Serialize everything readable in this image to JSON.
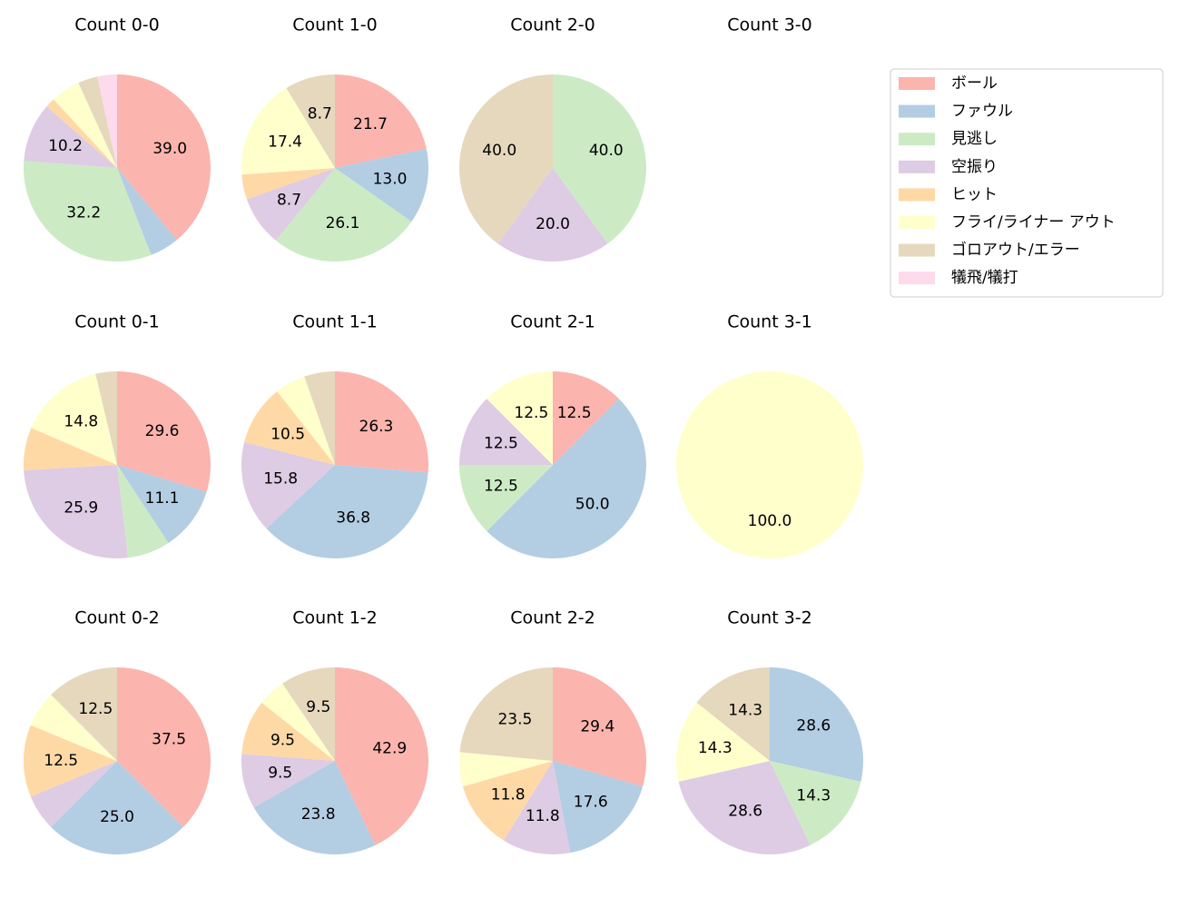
{
  "chart_data": [
    {
      "type": "pie",
      "title": "Count 0-0",
      "values": [
        39.0,
        5.1,
        32.2,
        10.2,
        1.7,
        5.1,
        3.4,
        3.4
      ],
      "value_labels": [
        "39.0",
        null,
        "32.2",
        "10.2",
        null,
        null,
        null,
        null
      ]
    },
    {
      "type": "pie",
      "title": "Count 1-0",
      "values": [
        21.7,
        13.0,
        26.1,
        8.7,
        4.3,
        17.4,
        8.7,
        0
      ],
      "value_labels": [
        "21.7",
        "13.0",
        "26.1",
        "8.7",
        null,
        "17.4",
        "8.7",
        null
      ]
    },
    {
      "type": "pie",
      "title": "Count 2-0",
      "values": [
        0,
        0,
        40.0,
        20.0,
        0,
        0,
        40.0,
        0
      ],
      "value_labels": [
        null,
        null,
        "40.0",
        "20.0",
        null,
        null,
        "40.0",
        null
      ]
    },
    {
      "type": "pie",
      "title": "Count 3-0",
      "values": [
        0,
        0,
        0,
        0,
        0,
        0,
        0,
        0
      ],
      "value_labels": [
        null,
        null,
        null,
        null,
        null,
        null,
        null,
        null
      ]
    },
    {
      "type": "pie",
      "title": "Count 0-1",
      "values": [
        29.6,
        11.1,
        7.4,
        25.9,
        7.4,
        14.8,
        3.7,
        0
      ],
      "value_labels": [
        "29.6",
        "11.1",
        null,
        "25.9",
        null,
        "14.8",
        null,
        null
      ]
    },
    {
      "type": "pie",
      "title": "Count 1-1",
      "values": [
        26.3,
        36.8,
        0,
        15.8,
        10.5,
        5.3,
        5.3,
        0
      ],
      "value_labels": [
        "26.3",
        "36.8",
        null,
        "15.8",
        "10.5",
        null,
        null,
        null
      ]
    },
    {
      "type": "pie",
      "title": "Count 2-1",
      "values": [
        12.5,
        50.0,
        12.5,
        12.5,
        0,
        12.5,
        0,
        0
      ],
      "value_labels": [
        "12.5",
        "50.0",
        "12.5",
        "12.5",
        null,
        "12.5",
        null,
        null
      ]
    },
    {
      "type": "pie",
      "title": "Count 3-1",
      "values": [
        0,
        0,
        0,
        0,
        0,
        100.0,
        0,
        0
      ],
      "value_labels": [
        null,
        null,
        null,
        null,
        null,
        "100.0",
        null,
        null
      ]
    },
    {
      "type": "pie",
      "title": "Count 0-2",
      "values": [
        37.5,
        25.0,
        0,
        6.25,
        12.5,
        6.25,
        12.5,
        0
      ],
      "value_labels": [
        "37.5",
        "25.0",
        null,
        null,
        "12.5",
        null,
        "12.5",
        null
      ]
    },
    {
      "type": "pie",
      "title": "Count 1-2",
      "values": [
        42.9,
        23.8,
        0,
        9.5,
        9.5,
        4.8,
        9.5,
        0
      ],
      "value_labels": [
        "42.9",
        "23.8",
        null,
        "9.5",
        "9.5",
        null,
        "9.5",
        null
      ]
    },
    {
      "type": "pie",
      "title": "Count 2-2",
      "values": [
        29.4,
        17.6,
        0,
        11.8,
        11.8,
        5.9,
        23.5,
        0
      ],
      "value_labels": [
        "29.4",
        "17.6",
        null,
        "11.8",
        "11.8",
        null,
        "23.5",
        null
      ]
    },
    {
      "type": "pie",
      "title": "Count 3-2",
      "values": [
        0,
        28.6,
        14.3,
        28.6,
        0,
        14.3,
        14.3,
        0
      ],
      "value_labels": [
        null,
        "28.6",
        "14.3",
        "28.6",
        null,
        "14.3",
        "14.3",
        null
      ]
    }
  ],
  "legend": {
    "categories": [
      "ボール",
      "ファウル",
      "見逃し",
      "空振り",
      "ヒット",
      "フライ/ライナー アウト",
      "ゴロアウト/エラー",
      "犠飛/犠打"
    ],
    "colors": [
      "#fbb4ae",
      "#b3cde3",
      "#ccebc5",
      "#decbe4",
      "#fed9a6",
      "#ffffcc",
      "#e5d8bd",
      "#fddaec"
    ]
  }
}
